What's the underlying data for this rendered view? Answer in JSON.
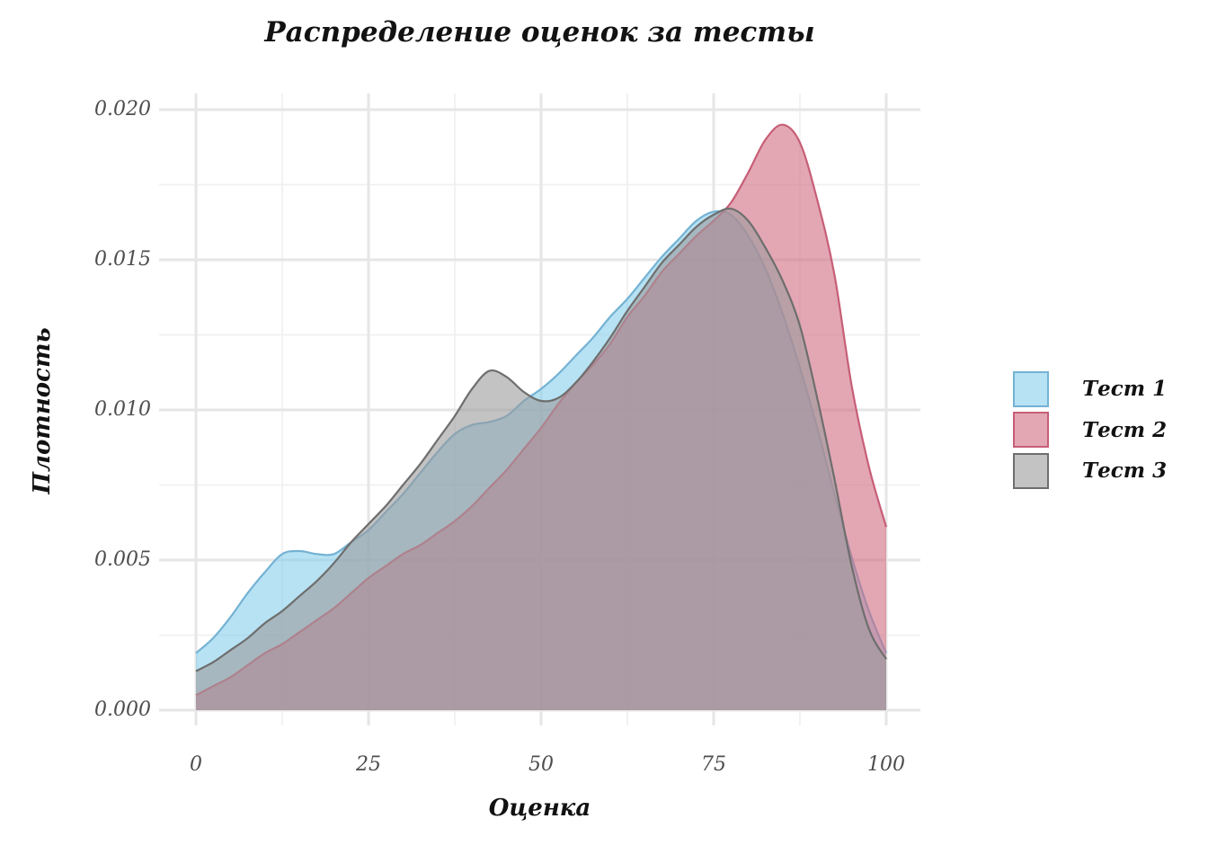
{
  "chart_data": {
    "type": "area",
    "title": "Распределение оценок за тесты",
    "xlabel": "Оценка",
    "ylabel": "Плотность",
    "x_ticks": [
      "0",
      "25",
      "50",
      "75",
      "100"
    ],
    "x_tick_values": [
      0,
      25,
      50,
      75,
      100
    ],
    "y_ticks": [
      "0.000",
      "0.005",
      "0.010",
      "0.015",
      "0.020"
    ],
    "y_tick_values": [
      0,
      0.005,
      0.01,
      0.015,
      0.02
    ],
    "minor_x_values": [
      12.5,
      37.5,
      62.5,
      87.5
    ],
    "minor_y_values": [
      0.0025,
      0.0075,
      0.0125,
      0.0175
    ],
    "xlim": [
      0,
      100
    ],
    "ylim": [
      0,
      0.02
    ],
    "grid": "on",
    "legend_position": "right",
    "background": "#ffffff",
    "grid_major_color": "#e6e6e6",
    "grid_minor_color": "#f0f0f0",
    "tick_label_color": "#4d4d4d",
    "series": [
      {
        "name": "Тест 1",
        "fill": "#87CEEB",
        "stroke": "#74b2d4",
        "fill_alpha": 0.6,
        "points": [
          [
            0,
            0.0019
          ],
          [
            2.5,
            0.0024
          ],
          [
            5,
            0.0031
          ],
          [
            7.5,
            0.0039
          ],
          [
            10,
            0.0046
          ],
          [
            12.5,
            0.0052
          ],
          [
            15,
            0.0053
          ],
          [
            17.5,
            0.0052
          ],
          [
            20,
            0.0052
          ],
          [
            22.5,
            0.0056
          ],
          [
            25,
            0.006
          ],
          [
            27.5,
            0.0066
          ],
          [
            30,
            0.0072
          ],
          [
            32.5,
            0.0079
          ],
          [
            35,
            0.0086
          ],
          [
            37.5,
            0.0092
          ],
          [
            40,
            0.0095
          ],
          [
            42.5,
            0.0096
          ],
          [
            45,
            0.0098
          ],
          [
            47.5,
            0.0103
          ],
          [
            50,
            0.0107
          ],
          [
            52.5,
            0.0112
          ],
          [
            55,
            0.0118
          ],
          [
            57.5,
            0.0124
          ],
          [
            60,
            0.0131
          ],
          [
            62.5,
            0.0137
          ],
          [
            65,
            0.0144
          ],
          [
            67.5,
            0.0151
          ],
          [
            70,
            0.0157
          ],
          [
            72.5,
            0.0163
          ],
          [
            75,
            0.0166
          ],
          [
            77.5,
            0.0165
          ],
          [
            80,
            0.0158
          ],
          [
            82.5,
            0.0147
          ],
          [
            85,
            0.0132
          ],
          [
            87.5,
            0.0114
          ],
          [
            90,
            0.0094
          ],
          [
            92.5,
            0.0072
          ],
          [
            95,
            0.0051
          ],
          [
            97.5,
            0.0033
          ],
          [
            100,
            0.0019
          ]
        ]
      },
      {
        "name": "Тест 2",
        "fill": "#D06C82",
        "stroke": "#C75E76",
        "fill_alpha": 0.6,
        "points": [
          [
            0,
            0.0005
          ],
          [
            2.5,
            0.0008
          ],
          [
            5,
            0.0011
          ],
          [
            7.5,
            0.0015
          ],
          [
            10,
            0.0019
          ],
          [
            12.5,
            0.0022
          ],
          [
            15,
            0.0026
          ],
          [
            17.5,
            0.003
          ],
          [
            20,
            0.0034
          ],
          [
            22.5,
            0.0039
          ],
          [
            25,
            0.0044
          ],
          [
            27.5,
            0.0048
          ],
          [
            30,
            0.0052
          ],
          [
            32.5,
            0.0055
          ],
          [
            35,
            0.0059
          ],
          [
            37.5,
            0.0063
          ],
          [
            40,
            0.0068
          ],
          [
            42.5,
            0.0074
          ],
          [
            45,
            0.008
          ],
          [
            47.5,
            0.0087
          ],
          [
            50,
            0.0094
          ],
          [
            52.5,
            0.0102
          ],
          [
            55,
            0.0109
          ],
          [
            57.5,
            0.0115
          ],
          [
            60,
            0.0122
          ],
          [
            62.5,
            0.0131
          ],
          [
            65,
            0.0138
          ],
          [
            67.5,
            0.0146
          ],
          [
            70,
            0.0152
          ],
          [
            72.5,
            0.0158
          ],
          [
            75,
            0.0163
          ],
          [
            77.5,
            0.0169
          ],
          [
            80,
            0.0179
          ],
          [
            82.5,
            0.019
          ],
          [
            85,
            0.0195
          ],
          [
            87.5,
            0.0189
          ],
          [
            90,
            0.017
          ],
          [
            92.5,
            0.0145
          ],
          [
            95,
            0.0108
          ],
          [
            97.5,
            0.0081
          ],
          [
            100,
            0.0061
          ]
        ]
      },
      {
        "name": "Тест 3",
        "fill": "#9B9B9C",
        "stroke": "#6E6E6E",
        "fill_alpha": 0.6,
        "points": [
          [
            0,
            0.0013
          ],
          [
            2.5,
            0.0016
          ],
          [
            5,
            0.002
          ],
          [
            7.5,
            0.0024
          ],
          [
            10,
            0.0029
          ],
          [
            12.5,
            0.0033
          ],
          [
            15,
            0.0038
          ],
          [
            17.5,
            0.0043
          ],
          [
            20,
            0.0049
          ],
          [
            22.5,
            0.0056
          ],
          [
            25,
            0.0062
          ],
          [
            27.5,
            0.0068
          ],
          [
            30,
            0.0075
          ],
          [
            32.5,
            0.0082
          ],
          [
            35,
            0.009
          ],
          [
            37.5,
            0.0098
          ],
          [
            40,
            0.0107
          ],
          [
            42.5,
            0.0113
          ],
          [
            45,
            0.0111
          ],
          [
            47.5,
            0.0106
          ],
          [
            50,
            0.0103
          ],
          [
            52.5,
            0.0104
          ],
          [
            55,
            0.0109
          ],
          [
            57.5,
            0.0116
          ],
          [
            60,
            0.0124
          ],
          [
            62.5,
            0.0133
          ],
          [
            65,
            0.0141
          ],
          [
            67.5,
            0.0149
          ],
          [
            70,
            0.0155
          ],
          [
            72.5,
            0.0161
          ],
          [
            75,
            0.0165
          ],
          [
            77.5,
            0.0167
          ],
          [
            80,
            0.0163
          ],
          [
            82.5,
            0.0154
          ],
          [
            85,
            0.0143
          ],
          [
            87.5,
            0.0128
          ],
          [
            90,
            0.0104
          ],
          [
            92.5,
            0.0077
          ],
          [
            95,
            0.0048
          ],
          [
            97.5,
            0.0027
          ],
          [
            100,
            0.0017
          ]
        ]
      }
    ]
  },
  "legend": {
    "items": [
      {
        "label": "Тест 1"
      },
      {
        "label": "Тест 2"
      },
      {
        "label": "Тест 3"
      }
    ]
  }
}
